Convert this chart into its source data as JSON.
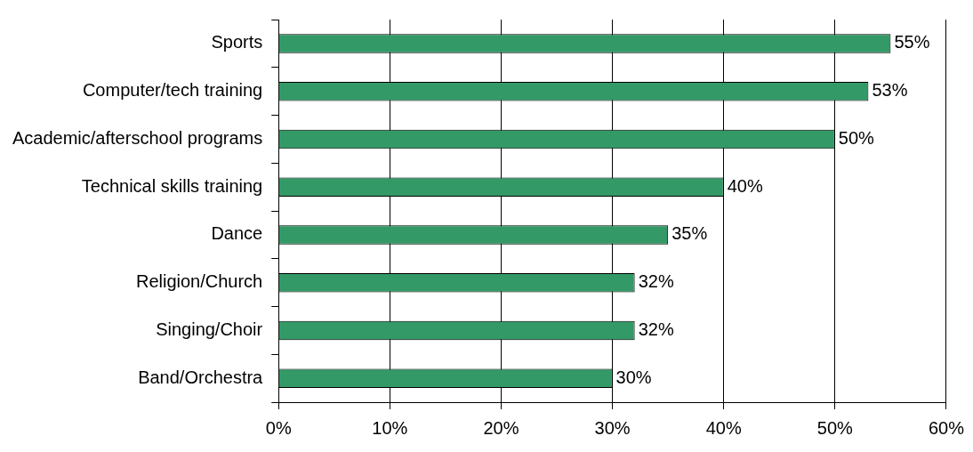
{
  "chart_data": {
    "type": "bar",
    "orientation": "horizontal",
    "categories": [
      "Sports",
      "Computer/tech training",
      "Academic/afterschool programs",
      "Technical skills training",
      "Dance",
      "Religion/Church",
      "Singing/Choir",
      "Band/Orchestra"
    ],
    "values": [
      55,
      53,
      50,
      40,
      35,
      32,
      32,
      30
    ],
    "value_labels": [
      "55%",
      "53%",
      "50%",
      "40%",
      "35%",
      "32%",
      "32%",
      "30%"
    ],
    "color": "#339966",
    "xlim": [
      0,
      60
    ],
    "xticks": [
      {
        "value": 0,
        "label": "0%"
      },
      {
        "value": 10,
        "label": "10%"
      },
      {
        "value": 20,
        "label": "20%"
      },
      {
        "value": 30,
        "label": "30%"
      },
      {
        "value": 40,
        "label": "40%"
      },
      {
        "value": 50,
        "label": "50%"
      },
      {
        "value": 60,
        "label": "60%"
      }
    ],
    "grid": "x",
    "legend": false
  }
}
